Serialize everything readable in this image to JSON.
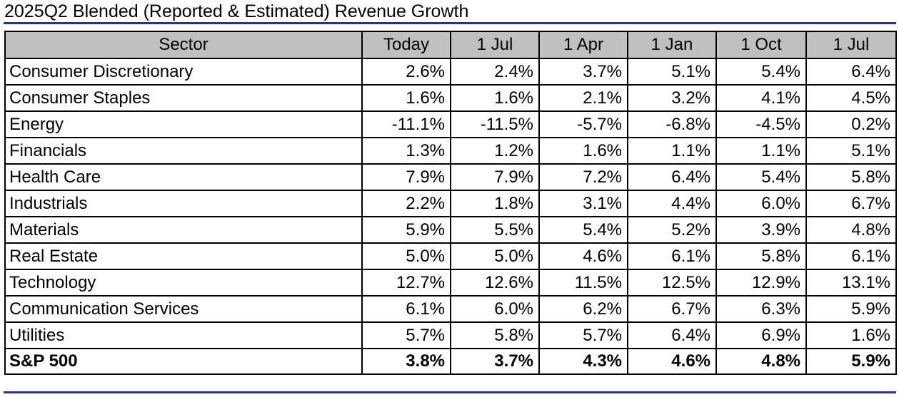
{
  "colors": {
    "rule": "#1f2fb3",
    "header_bg": "#c0c0c0",
    "border": "#000000"
  },
  "chart_data": {
    "type": "table",
    "title": "2025Q2 Blended (Reported & Estimated) Revenue Growth",
    "columns": [
      "Sector",
      "Today",
      "1 Jul",
      "1 Apr",
      "1 Jan",
      "1 Oct",
      "1 Jul"
    ],
    "rows": [
      {
        "sector": "Consumer Discretionary",
        "values": [
          "2.6%",
          "2.4%",
          "3.7%",
          "5.1%",
          "5.4%",
          "6.4%"
        ]
      },
      {
        "sector": "Consumer Staples",
        "values": [
          "1.6%",
          "1.6%",
          "2.1%",
          "3.2%",
          "4.1%",
          "4.5%"
        ]
      },
      {
        "sector": "Energy",
        "values": [
          "-11.1%",
          "-11.5%",
          "-5.7%",
          "-6.8%",
          "-4.5%",
          "0.2%"
        ]
      },
      {
        "sector": "Financials",
        "values": [
          "1.3%",
          "1.2%",
          "1.6%",
          "1.1%",
          "1.1%",
          "5.1%"
        ]
      },
      {
        "sector": "Health Care",
        "values": [
          "7.9%",
          "7.9%",
          "7.2%",
          "6.4%",
          "5.4%",
          "5.8%"
        ]
      },
      {
        "sector": "Industrials",
        "values": [
          "2.2%",
          "1.8%",
          "3.1%",
          "4.4%",
          "6.0%",
          "6.7%"
        ]
      },
      {
        "sector": "Materials",
        "values": [
          "5.9%",
          "5.5%",
          "5.4%",
          "5.2%",
          "3.9%",
          "4.8%"
        ]
      },
      {
        "sector": "Real Estate",
        "values": [
          "5.0%",
          "5.0%",
          "4.6%",
          "6.1%",
          "5.8%",
          "6.1%"
        ]
      },
      {
        "sector": "Technology",
        "values": [
          "12.7%",
          "12.6%",
          "11.5%",
          "12.5%",
          "12.9%",
          "13.1%"
        ]
      },
      {
        "sector": "Communication Services",
        "values": [
          "6.1%",
          "6.0%",
          "6.2%",
          "6.7%",
          "6.3%",
          "5.9%"
        ]
      },
      {
        "sector": "Utilities",
        "values": [
          "5.7%",
          "5.8%",
          "5.7%",
          "6.4%",
          "6.9%",
          "1.6%"
        ]
      }
    ],
    "total": {
      "sector": "S&P 500",
      "values": [
        "3.8%",
        "3.7%",
        "4.3%",
        "4.6%",
        "4.8%",
        "5.9%"
      ]
    }
  }
}
